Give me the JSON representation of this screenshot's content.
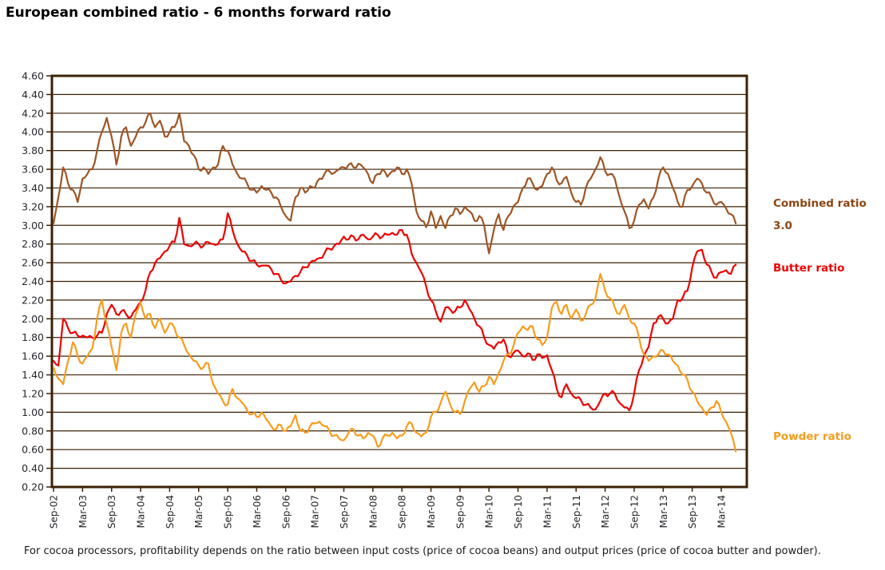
{
  "title": "European combined ratio - 6 months forward ratio",
  "caption": "For cocoa processors, profitability depends on the ratio between input costs (price of cocoa beans) and output prices (price of cocoa butter and powder).",
  "colors": {
    "combined_line": "#9D5526",
    "butter_line": "#ED0000",
    "powder_line": "#F79C1D",
    "combined_label_text": "#8B4513",
    "axis_and_grid": "#3B2206",
    "tick_label_text": "#26242B"
  },
  "legend": {
    "combined": {
      "label": "Combined ratio",
      "value": "3.0"
    },
    "butter": {
      "label": "Butter ratio"
    },
    "powder": {
      "label": "Powder ratio"
    }
  },
  "chart_data": {
    "type": "line",
    "title": "European combined ratio - 6 months forward ratio",
    "xlabel": "",
    "ylabel": "",
    "ylim": [
      0.2,
      4.6
    ],
    "y_tick_step": 0.2,
    "y_tick_labels": [
      "4.60",
      "4.40",
      "4.20",
      "4.00",
      "3.80",
      "3.60",
      "3.40",
      "3.20",
      "3.00",
      "2.80",
      "2.60",
      "2.40",
      "2.20",
      "2.00",
      "1.80",
      "1.60",
      "1.40",
      "1.20",
      "1.00",
      "0.80",
      "0.60",
      "0.40",
      "0.20"
    ],
    "x_tick_labels": [
      "Sep-02",
      "Mar-03",
      "Sep-03",
      "Mar-04",
      "Sep-04",
      "Mar-05",
      "Sep-05",
      "Mar-06",
      "Sep-06",
      "Mar-07",
      "Sep-07",
      "Mar-08",
      "Sep-08",
      "Mar-09",
      "Sep-09",
      "Mar-10",
      "Sep-10",
      "Mar-11",
      "Sep-11",
      "Mar-12",
      "Sep-12",
      "Mar-13",
      "Sep-13",
      "Mar-14"
    ],
    "x_start": "Sep-02",
    "x_frequency": "monthly",
    "grid": "horizontal-only",
    "legend_position": "right",
    "series": [
      {
        "name": "Combined ratio",
        "color": "#9D5526",
        "values": [
          3.02,
          3.3,
          3.62,
          3.45,
          3.38,
          3.25,
          3.5,
          3.55,
          3.6,
          3.8,
          4.0,
          4.15,
          3.95,
          3.65,
          3.95,
          4.05,
          3.85,
          3.95,
          4.05,
          4.1,
          4.2,
          4.05,
          4.12,
          3.95,
          4.0,
          4.05,
          4.2,
          3.9,
          3.85,
          3.75,
          3.6,
          3.62,
          3.55,
          3.62,
          3.65,
          3.85,
          3.8,
          3.65,
          3.55,
          3.5,
          3.45,
          3.38,
          3.35,
          3.42,
          3.38,
          3.35,
          3.3,
          3.2,
          3.1,
          3.05,
          3.3,
          3.4,
          3.35,
          3.42,
          3.4,
          3.5,
          3.55,
          3.58,
          3.56,
          3.6,
          3.62,
          3.65,
          3.62,
          3.66,
          3.62,
          3.55,
          3.45,
          3.55,
          3.6,
          3.52,
          3.58,
          3.62,
          3.55,
          3.6,
          3.45,
          3.15,
          3.05,
          2.98,
          3.15,
          2.97,
          3.1,
          2.97,
          3.1,
          3.18,
          3.12,
          3.2,
          3.15,
          3.05,
          3.1,
          3.0,
          2.7,
          2.95,
          3.12,
          2.95,
          3.1,
          3.2,
          3.25,
          3.4,
          3.5,
          3.45,
          3.38,
          3.42,
          3.55,
          3.62,
          3.48,
          3.45,
          3.52,
          3.35,
          3.25,
          3.22,
          3.4,
          3.5,
          3.6,
          3.73,
          3.58,
          3.55,
          3.5,
          3.3,
          3.15,
          2.97,
          3.05,
          3.22,
          3.28,
          3.18,
          3.3,
          3.5,
          3.62,
          3.55,
          3.4,
          3.25,
          3.2,
          3.38,
          3.42,
          3.5,
          3.45,
          3.35,
          3.3,
          3.22,
          3.25,
          3.18,
          3.12,
          3.02
        ]
      },
      {
        "name": "Butter ratio",
        "color": "#ED0000",
        "values": [
          1.55,
          1.5,
          2.0,
          1.9,
          1.85,
          1.82,
          1.82,
          1.8,
          1.8,
          1.82,
          1.85,
          2.05,
          2.15,
          2.05,
          2.08,
          2.05,
          2.02,
          2.1,
          2.18,
          2.3,
          2.5,
          2.6,
          2.65,
          2.72,
          2.78,
          2.82,
          3.08,
          2.8,
          2.78,
          2.8,
          2.8,
          2.78,
          2.82,
          2.8,
          2.8,
          2.85,
          3.13,
          2.95,
          2.8,
          2.72,
          2.68,
          2.62,
          2.58,
          2.57,
          2.57,
          2.53,
          2.48,
          2.42,
          2.38,
          2.4,
          2.46,
          2.5,
          2.55,
          2.6,
          2.62,
          2.65,
          2.7,
          2.75,
          2.78,
          2.8,
          2.88,
          2.85,
          2.88,
          2.85,
          2.9,
          2.85,
          2.88,
          2.9,
          2.88,
          2.9,
          2.92,
          2.9,
          2.95,
          2.9,
          2.7,
          2.6,
          2.5,
          2.35,
          2.2,
          2.08,
          1.97,
          2.12,
          2.1,
          2.08,
          2.12,
          2.2,
          2.1,
          2.0,
          1.92,
          1.8,
          1.72,
          1.68,
          1.75,
          1.78,
          1.6,
          1.63,
          1.66,
          1.6,
          1.63,
          1.56,
          1.62,
          1.58,
          1.61,
          1.45,
          1.25,
          1.16,
          1.3,
          1.2,
          1.15,
          1.13,
          1.08,
          1.05,
          1.03,
          1.12,
          1.2,
          1.2,
          1.2,
          1.1,
          1.05,
          1.02,
          1.2,
          1.45,
          1.6,
          1.7,
          1.95,
          2.02,
          2.0,
          1.95,
          2.0,
          2.2,
          2.22,
          2.3,
          2.55,
          2.72,
          2.74,
          2.58,
          2.5,
          2.44,
          2.5,
          2.52,
          2.48,
          2.58
        ]
      },
      {
        "name": "Powder ratio",
        "color": "#F79C1D",
        "values": [
          1.48,
          1.36,
          1.3,
          1.55,
          1.75,
          1.6,
          1.52,
          1.6,
          1.68,
          2.0,
          2.2,
          1.95,
          1.7,
          1.45,
          1.85,
          1.95,
          1.8,
          2.05,
          2.18,
          2.0,
          2.05,
          1.9,
          2.0,
          1.85,
          1.95,
          1.9,
          1.8,
          1.72,
          1.62,
          1.55,
          1.5,
          1.48,
          1.52,
          1.3,
          1.2,
          1.12,
          1.08,
          1.25,
          1.15,
          1.1,
          1.02,
          0.98,
          0.95,
          1.0,
          0.92,
          0.85,
          0.82,
          0.86,
          0.8,
          0.85,
          0.97,
          0.8,
          0.78,
          0.85,
          0.88,
          0.9,
          0.85,
          0.8,
          0.75,
          0.72,
          0.7,
          0.78,
          0.82,
          0.75,
          0.72,
          0.78,
          0.75,
          0.63,
          0.72,
          0.75,
          0.78,
          0.72,
          0.75,
          0.85,
          0.88,
          0.78,
          0.74,
          0.78,
          0.95,
          1.0,
          1.1,
          1.22,
          1.08,
          1.0,
          0.98,
          1.12,
          1.25,
          1.32,
          1.22,
          1.28,
          1.38,
          1.3,
          1.42,
          1.55,
          1.62,
          1.7,
          1.85,
          1.92,
          1.88,
          1.92,
          1.78,
          1.72,
          1.8,
          2.12,
          2.18,
          2.05,
          2.15,
          2.0,
          2.1,
          1.98,
          2.05,
          2.15,
          2.22,
          2.48,
          2.3,
          2.22,
          2.12,
          2.05,
          2.15,
          2.0,
          1.95,
          1.8,
          1.62,
          1.55,
          1.6,
          1.62,
          1.66,
          1.62,
          1.55,
          1.5,
          1.4,
          1.35,
          1.22,
          1.12,
          1.05,
          0.97,
          1.05,
          1.12,
          1.0,
          0.9,
          0.78,
          0.58
        ]
      }
    ],
    "annotations": [
      {
        "text": "Combined ratio",
        "color": "#8B4513",
        "position": "right-of-plot"
      },
      {
        "text": "3.0",
        "color": "#8B4513",
        "position": "right-of-plot",
        "meaning": "latest combined ratio value"
      },
      {
        "text": "Butter ratio",
        "color": "#ED0000",
        "position": "right-of-plot"
      },
      {
        "text": "Powder ratio",
        "color": "#F79C1D",
        "position": "right-of-plot"
      }
    ]
  }
}
